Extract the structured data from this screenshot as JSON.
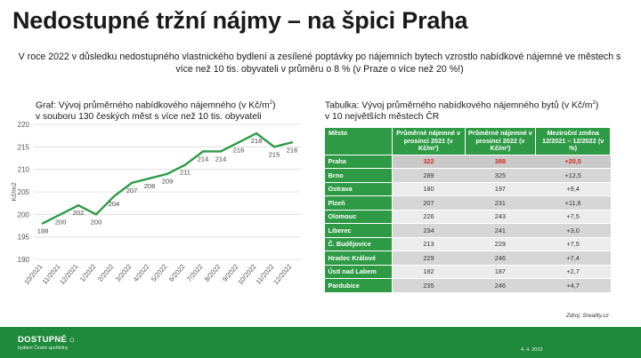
{
  "title": "Nedostupné tržní nájmy – na špici Praha",
  "intro": "V roce 2022 v důsledku nedostupného vlastnického bydlení a zesílené poptávky po nájemních bytech vzrostlo nabídkové nájemné ve městech s více než 10 tis. obyvateli v průměru o 8 % (v Praze o více než 20 %!)",
  "graph_caption_line1": "Graf: Vývoj průměrného nabídkového nájemného (v Kč/m",
  "graph_caption_sup": "2",
  "graph_caption_end": ")",
  "graph_caption_line2": "v souboru 130 českých měst s více než 10 tis. obyvateli",
  "table_caption_line1": "Tabulka: Vývoj průměrného nabídkového nájemného bytů (v Kč/m",
  "table_caption_sup": "2",
  "table_caption_end": ")",
  "table_caption_line2": "v 10 největších městech ČR",
  "chart_data": {
    "type": "line",
    "categories": [
      "10/2021",
      "11/2021",
      "12/2021",
      "1/2022",
      "2/2022",
      "3/2022",
      "4/2022",
      "5/2022",
      "6/2022",
      "7/2022",
      "8/2022",
      "9/2022",
      "10/2022",
      "11/2022",
      "12/2022"
    ],
    "values": [
      198,
      200,
      202,
      200,
      204,
      207,
      208,
      209,
      211,
      214,
      214,
      216,
      218,
      215,
      216
    ],
    "value_labels": [
      "198",
      "200",
      "202",
      "200",
      "204",
      "207",
      "208",
      "209",
      "211",
      "214",
      "214",
      "216",
      "218",
      "215",
      "216"
    ],
    "ylabel": "Kč/m2",
    "ylim": [
      190,
      220
    ],
    "yticks": [
      190,
      195,
      200,
      205,
      210,
      215,
      220
    ],
    "grid": true,
    "line_color": "#2e9a46"
  },
  "table": {
    "headers": [
      "Město",
      "Průměrné nájemné v prosinci 2021 (v Kč/m²)",
      "Průměrné nájemné v prosinci 2022 (v Kč/m²)",
      "Meziroční změna 12/2021 – 12/2022 (v %)"
    ],
    "rows": [
      {
        "city": "Praha",
        "v2021": "322",
        "v2022": "388",
        "change": "+20,5"
      },
      {
        "city": "Brno",
        "v2021": "289",
        "v2022": "325",
        "change": "+12,5"
      },
      {
        "city": "Ostrava",
        "v2021": "180",
        "v2022": "197",
        "change": "+9,4"
      },
      {
        "city": "Plzeň",
        "v2021": "207",
        "v2022": "231",
        "change": "+11,6"
      },
      {
        "city": "Olomouc",
        "v2021": "226",
        "v2022": "243",
        "change": "+7,5"
      },
      {
        "city": "Liberec",
        "v2021": "234",
        "v2022": "241",
        "change": "+3,0"
      },
      {
        "city": "Č. Budějovice",
        "v2021": "213",
        "v2022": "229",
        "change": "+7,5"
      },
      {
        "city": "Hradec Králové",
        "v2021": "229",
        "v2022": "246",
        "change": "+7,4"
      },
      {
        "city": "Ústí nad Labem",
        "v2021": "182",
        "v2022": "187",
        "change": "+2,7"
      },
      {
        "city": "Pardubice",
        "v2021": "235",
        "v2022": "246",
        "change": "+4,7"
      }
    ]
  },
  "source": "Zdroj: Sreality.cz",
  "footer": {
    "logo": "DOSTUPNÉ",
    "logo_sub": "bydlení České spořitelny",
    "date": "4. 4. 2023",
    "color": "#1f8a3b"
  }
}
